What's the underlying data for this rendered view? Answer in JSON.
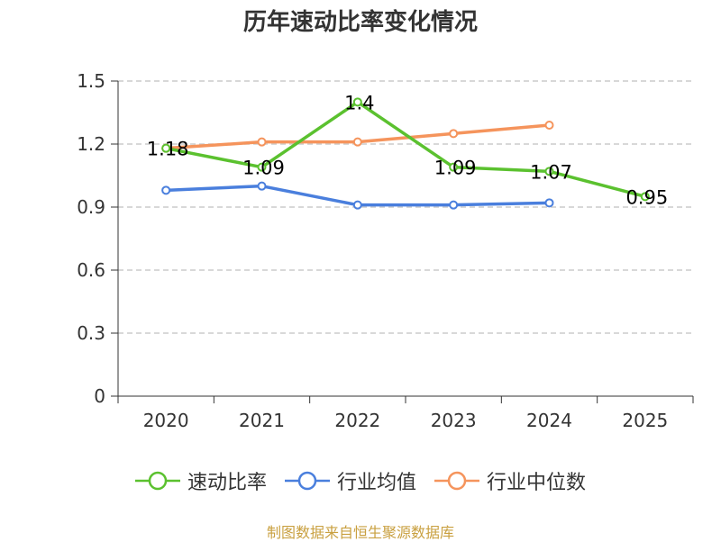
{
  "chart_data": {
    "type": "line",
    "title": "历年速动比率变化情况",
    "categories": [
      "2020",
      "2021",
      "2022",
      "2023",
      "2024",
      "2025"
    ],
    "y_ticks": [
      "0",
      "0.3",
      "0.6",
      "0.9",
      "1.2",
      "1.5"
    ],
    "ylim": [
      0,
      1.5
    ],
    "grid": true,
    "legend_position": "bottom",
    "series": [
      {
        "name": "速动比率",
        "color": "#5bc12f",
        "values": [
          1.18,
          1.09,
          1.4,
          1.09,
          1.07,
          0.95
        ],
        "labels": [
          "1.18",
          "1.09",
          "1.4",
          "1.09",
          "1.07",
          "0.95"
        ]
      },
      {
        "name": "行业均值",
        "color": "#4a7fdd",
        "values": [
          0.98,
          1.0,
          0.91,
          0.91,
          0.92,
          null
        ]
      },
      {
        "name": "行业中位数",
        "color": "#f5945c",
        "values": [
          1.18,
          1.21,
          1.21,
          1.25,
          1.29,
          null
        ]
      }
    ]
  },
  "footer": "制图数据来自恒生聚源数据库"
}
